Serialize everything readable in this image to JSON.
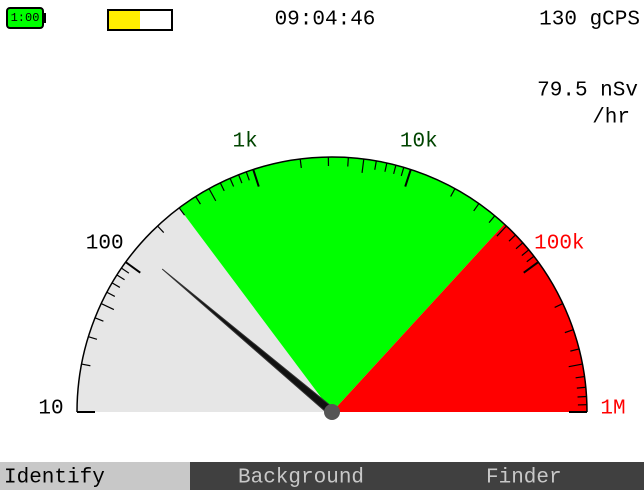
{
  "status": {
    "battery": "1:00",
    "level_bar": 50,
    "time": "09:04:46",
    "count_rate": "130 gCPS"
  },
  "dose_rate": {
    "value": "79.5 nSv",
    "unit": "/hr"
  },
  "gauge": {
    "scale": [
      {
        "value": 10,
        "label": "10"
      },
      {
        "value": 100,
        "label": "100"
      },
      {
        "value": 1000,
        "label": "1k"
      },
      {
        "value": 10000,
        "label": "10k"
      },
      {
        "value": 100000,
        "label": "100k"
      },
      {
        "value": 1000000,
        "label": "1M"
      }
    ],
    "label_colors": [
      "#000000",
      "#000000",
      "#004400",
      "#004400",
      "#ff0000",
      "#ff0000"
    ],
    "zones": [
      {
        "from": 10,
        "to": 300,
        "color": "#e6e6e6"
      },
      {
        "from": 300,
        "to": 48000,
        "color": "#00ff00"
      },
      {
        "from": 48000,
        "to": 1000000,
        "color": "#ff0000"
      }
    ],
    "needle": 130
  },
  "menu": [
    "Identify",
    "Background",
    "Finder"
  ]
}
